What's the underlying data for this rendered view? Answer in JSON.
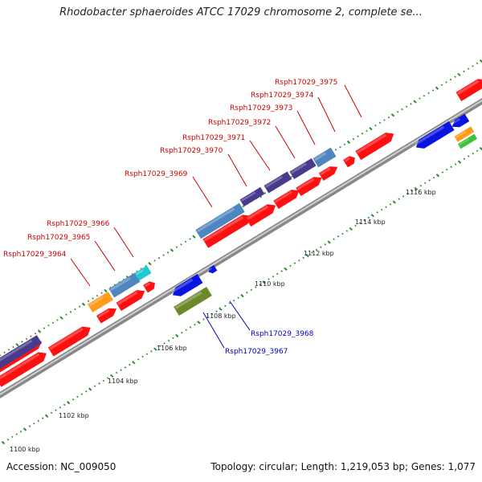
{
  "title": "Rhodobacter sphaeroides ATCC 17029 chromosome 2, complete se...",
  "footer": {
    "accession": "Accession: NC_009050",
    "summary": "Topology: circular; Length: 1,219,053 bp; Genes: 1,077"
  },
  "ticks": [
    "1100 kbp",
    "1102 kbp",
    "1104 kbp",
    "1106 kbp",
    "1108 kbp",
    "1110 kbp",
    "1112 kbp",
    "1114 kbp",
    "1116 kbp"
  ],
  "forward_labels": [
    "Rsph17029_3964",
    "Rsph17029_3965",
    "Rsph17029_3966",
    "Rsph17029_3969",
    "Rsph17029_3970",
    "Rsph17029_3971",
    "Rsph17029_3972",
    "Rsph17029_3973",
    "Rsph17029_3974",
    "Rsph17029_3975"
  ],
  "reverse_labels": [
    "Rsph17029_3968",
    "Rsph17029_3967"
  ],
  "colors": {
    "forward_label": "#cc0000",
    "reverse_label": "#0000bb",
    "cds": "#ff1010",
    "steelblue": "#4f86bf",
    "purple": "#4a3a8c",
    "cyan": "#22c8d0",
    "orange": "#ff9a1a",
    "blue": "#0a14e0",
    "olive": "#6a8a2a",
    "green": "#3cc23c",
    "backbone": "#9a9a9a",
    "tick": "#2e8b2e"
  }
}
